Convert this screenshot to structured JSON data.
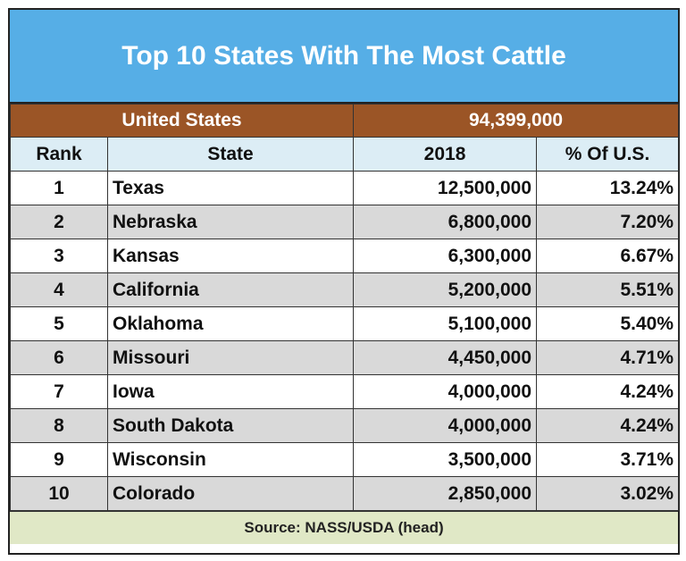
{
  "title": "Top 10 States With The Most Cattle",
  "summary": {
    "label": "United States",
    "value": "94,399,000"
  },
  "table": {
    "header": [
      "Rank",
      "State",
      "2018",
      "% Of U.S."
    ],
    "rows": [
      [
        "1",
        "Texas",
        "12,500,000",
        "13.24%"
      ],
      [
        "2",
        "Nebraska",
        "6,800,000",
        "7.20%"
      ],
      [
        "3",
        "Kansas",
        "6,300,000",
        "6.67%"
      ],
      [
        "4",
        "California",
        "5,200,000",
        "5.51%"
      ],
      [
        "5",
        "Oklahoma",
        "5,100,000",
        "5.40%"
      ],
      [
        "6",
        "Missouri",
        "4,450,000",
        "4.71%"
      ],
      [
        "7",
        "Iowa",
        "4,000,000",
        "4.24%"
      ],
      [
        "8",
        "South Dakota",
        "4,000,000",
        "4.24%"
      ],
      [
        "9",
        "Wisconsin",
        "3,500,000",
        "3.71%"
      ],
      [
        "10",
        "Colorado",
        "2,850,000",
        "3.02%"
      ]
    ]
  },
  "source": "Source:  NASS/USDA (head)"
}
